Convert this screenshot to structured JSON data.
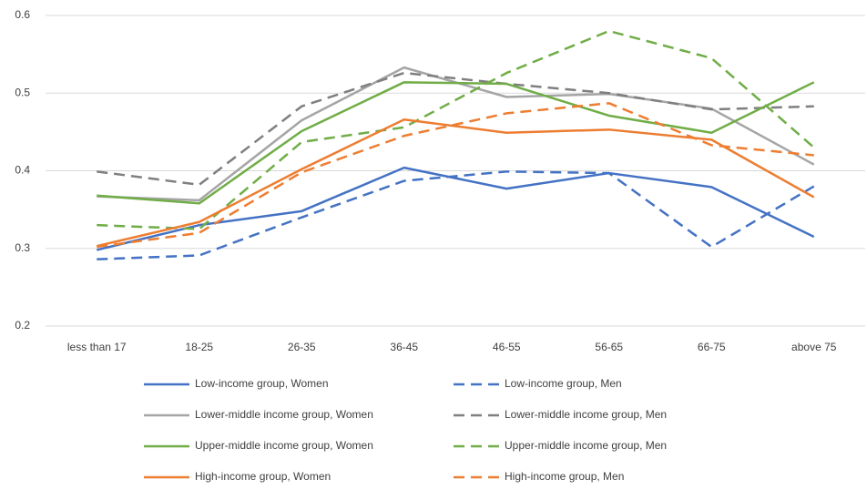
{
  "chart_data": {
    "type": "line",
    "categories": [
      "less than 17",
      "18-25",
      "26-35",
      "36-45",
      "46-55",
      "56-65",
      "66-75",
      "above 75"
    ],
    "ylim": [
      0.2,
      0.6
    ],
    "yticks": [
      0.2,
      0.3,
      0.4,
      0.5,
      0.6
    ],
    "grid": true,
    "series": [
      {
        "name": "Low-income group, Women",
        "color": "#4472c4",
        "line_style": "solid",
        "values": [
          0.298,
          0.33,
          0.348,
          0.404,
          0.377,
          0.397,
          0.379,
          0.315
        ]
      },
      {
        "name": "Low-income group, Men",
        "color": "#4472c4",
        "line_style": "dashed",
        "values": [
          0.286,
          0.291,
          0.34,
          0.387,
          0.399,
          0.397,
          0.302,
          0.38
        ]
      },
      {
        "name": "Lower-middle income group, Women",
        "color": "#a5a5a5",
        "line_style": "solid",
        "values": [
          0.367,
          0.362,
          0.465,
          0.533,
          0.495,
          0.499,
          0.48,
          0.408
        ]
      },
      {
        "name": "Lower-middle income group, Men",
        "color": "#7f7f7f",
        "line_style": "dashed",
        "values": [
          0.399,
          0.382,
          0.483,
          0.526,
          0.512,
          0.5,
          0.479,
          0.483
        ]
      },
      {
        "name": "Upper-middle income group, Women",
        "color": "#70ad47",
        "line_style": "solid",
        "values": [
          0.368,
          0.358,
          0.451,
          0.514,
          0.512,
          0.471,
          0.449,
          0.514
        ]
      },
      {
        "name": "Upper-middle income group, Men",
        "color": "#70ad47",
        "line_style": "dashed",
        "values": [
          0.33,
          0.325,
          0.437,
          0.456,
          0.526,
          0.58,
          0.545,
          0.43
        ]
      },
      {
        "name": "High-income group, Women",
        "color": "#ed7d31",
        "line_style": "solid",
        "values": [
          0.303,
          0.334,
          0.402,
          0.466,
          0.449,
          0.453,
          0.44,
          0.366
        ]
      },
      {
        "name": "High-income group, Men",
        "color": "#ed7d31",
        "line_style": "dashed",
        "values": [
          0.302,
          0.32,
          0.398,
          0.445,
          0.474,
          0.487,
          0.433,
          0.42
        ]
      }
    ]
  }
}
